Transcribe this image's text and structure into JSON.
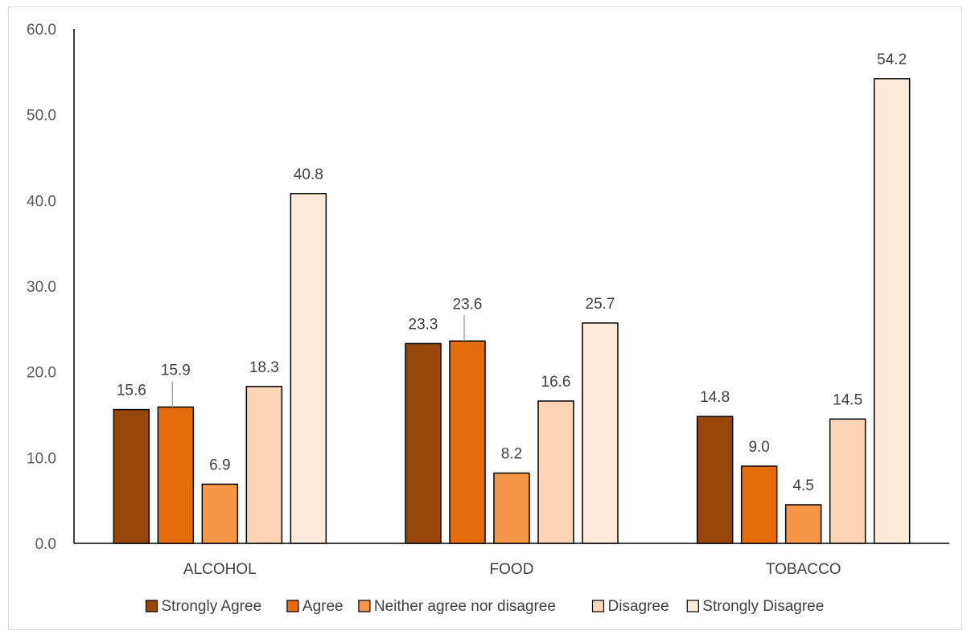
{
  "chart_data": {
    "type": "bar",
    "categories": [
      "ALCOHOL",
      "FOOD",
      "TOBACCO"
    ],
    "series": [
      {
        "name": "Strongly Agree",
        "color": "#97460a",
        "values": [
          15.6,
          23.3,
          14.8
        ],
        "labels": [
          "15.6",
          "23.3",
          "14.8"
        ]
      },
      {
        "name": "Agree",
        "color": "#e46c0a",
        "values": [
          15.9,
          23.6,
          9.0
        ],
        "labels": [
          "15.9",
          "23.6",
          "9.0"
        ]
      },
      {
        "name": "Neither agree nor disagree",
        "color": "#f79646",
        "values": [
          6.9,
          8.2,
          4.5
        ],
        "labels": [
          "6.9",
          "8.2",
          "4.5"
        ]
      },
      {
        "name": "Disagree",
        "color": "#fbd5b5",
        "values": [
          18.3,
          16.6,
          14.5
        ],
        "labels": [
          "18.3",
          "16.6",
          "14.5"
        ]
      },
      {
        "name": "Strongly Disagree",
        "color": "#fdeada",
        "values": [
          40.8,
          25.7,
          54.2
        ],
        "labels": [
          "40.8",
          "25.7",
          "54.2"
        ]
      }
    ],
    "yticks": [
      "0.0",
      "10.0",
      "20.0",
      "30.0",
      "40.0",
      "50.0",
      "60.0"
    ],
    "ylim": [
      0,
      60
    ],
    "legend_position": "bottom",
    "grid": false
  }
}
